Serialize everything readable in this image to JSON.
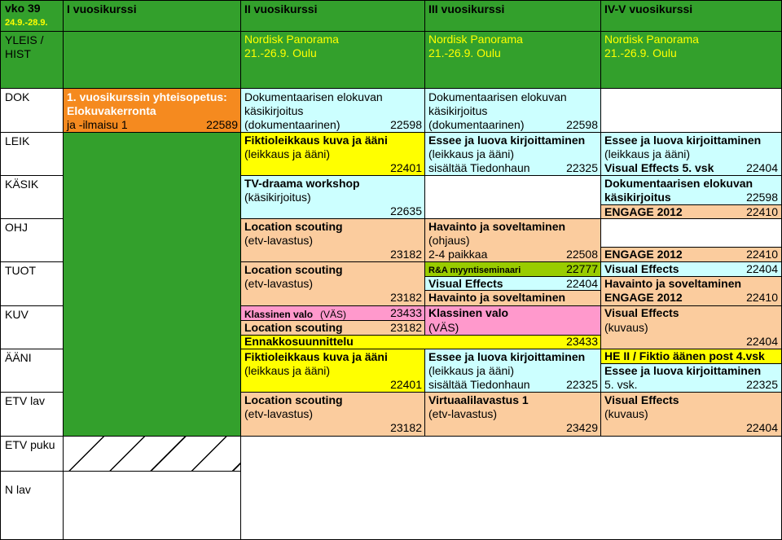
{
  "colors": {
    "green": "#33a02c",
    "orange": "#f58a1f",
    "yellow": "#ffff00",
    "cyan": "#ccffff",
    "peach": "#fbcc9e",
    "pink": "#ff99cc",
    "yellowgreen": "#99cc00",
    "white": "#ffffff"
  },
  "header": {
    "week": "vko 39",
    "dates": "24.9.-28.9.",
    "col1": "I vuosikurssi",
    "col2": "II vuosikurssi",
    "col3": "III vuosikurssi",
    "col4": "IV-V vuosikurssi"
  },
  "rows": {
    "yleis": [
      "YLEIS /",
      "HIST"
    ],
    "dok": "DOK",
    "leik": "LEIK",
    "kasik": "KÄSIK",
    "ohj": "OHJ",
    "tuot": "TUOT",
    "kuv": "KUV",
    "aani": "ÄÄNI",
    "etvlav": "ETV lav",
    "etvpuku": "ETV puku",
    "nlav": "N lav"
  },
  "yleis": {
    "col2": [
      "Nordisk Panorama",
      "21.-26.9. Oulu"
    ],
    "col3": [
      "Nordisk Panorama",
      "21.-26.9. Oulu"
    ],
    "col4": [
      "Nordisk Panorama",
      "21.-26.9. Oulu"
    ]
  },
  "dok": {
    "col1": [
      "1. vuosikurssin yhteisopetus:",
      "Elokuvakerronta",
      "ja -ilmaisu 1",
      "22589"
    ],
    "col2": [
      "Dokumentaarisen elokuvan",
      "käsikirjoitus",
      "(dokumentaarinen)",
      "22598"
    ],
    "col3": [
      "Dokumentaarisen elokuvan",
      "käsikirjoitus",
      "(dokumentaarinen)",
      "22598"
    ]
  },
  "leik": {
    "col2": [
      "Fiktioleikkaus kuva ja ääni",
      "(leikkaus ja ääni)",
      "22401"
    ],
    "col3": [
      "Essee ja luova kirjoittaminen",
      "(leikkaus ja ääni)",
      "sisältää Tiedonhaun",
      "22325"
    ],
    "col4": [
      "Essee ja luova kirjoittaminen",
      "(leikkaus ja ääni)",
      "Visual Effects 5. vsk",
      "22404"
    ]
  },
  "kasik": {
    "col2": [
      "TV-draama workshop",
      "(käsikirjoitus)",
      "22635"
    ],
    "col4a": [
      "Dokumentaarisen elokuvan",
      "käsikirjoitus",
      "22598"
    ],
    "col4b": [
      "ENGAGE 2012",
      "22410"
    ]
  },
  "ohj": {
    "col2": [
      "Location scouting",
      "(etv-lavastus)",
      "23182"
    ],
    "col3": [
      "Havainto ja soveltaminen",
      "(ohjaus)",
      "2-4 paikkaa",
      "22508"
    ],
    "col4": [
      "ENGAGE 2012",
      "22410"
    ]
  },
  "tuot": {
    "col2": [
      "Location scouting",
      "(etv-lavastus)",
      "23182"
    ],
    "col3a": [
      "R&A myyntiseminaari",
      "22777"
    ],
    "col3b": [
      "Visual Effects",
      "22404"
    ],
    "col3c": [
      "Havainto ja soveltaminen"
    ],
    "col4a": [
      "Visual Effects",
      "22404"
    ],
    "col4b": [
      "Havainto ja soveltaminen"
    ],
    "col4c": [
      "ENGAGE 2012",
      "22410"
    ]
  },
  "kuv": {
    "col2a": [
      "Klassinen valo",
      "(VÄS)",
      "23433"
    ],
    "col2b": [
      "Location scouting",
      "23182"
    ],
    "col3": [
      "Klassinen valo",
      "(VÄS)"
    ],
    "ennakko": [
      "Ennakkosuunnittelu",
      "23433"
    ],
    "col4": [
      "Visual Effects",
      "(kuvaus)",
      "22404"
    ]
  },
  "aani": {
    "col2": [
      "Fiktioleikkaus kuva ja ääni",
      "(leikkaus ja ääni)",
      "22401"
    ],
    "col3": [
      "Essee ja luova kirjoittaminen",
      "(leikkaus ja ääni)",
      "sisältää Tiedonhaun",
      "22325"
    ],
    "col4": [
      "HE II / Fiktio äänen post 4.vsk",
      "Essee ja luova kirjoittaminen",
      "5. vsk.",
      "22325"
    ]
  },
  "etvlav": {
    "col2": [
      "Location scouting",
      "(etv-lavastus)",
      "23182"
    ],
    "col3": [
      "Virtuaalilavastus 1",
      "(etv-lavastus)",
      "23429"
    ],
    "col4": [
      "Visual Effects",
      "(kuvaus)",
      "22404"
    ]
  }
}
